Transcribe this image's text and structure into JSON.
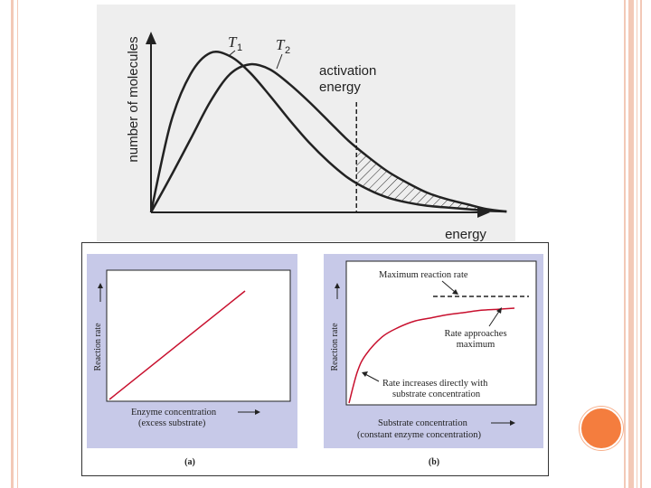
{
  "theme": {
    "accent": "#f47d3e",
    "decor": "#f3c9b7",
    "curve_red": "#c8102e",
    "panel_bg": "#c7c9e8"
  },
  "chart_data": [
    {
      "type": "line",
      "ylabel": "number of molecules",
      "xlabel": "energy",
      "series": [
        {
          "name": "T1",
          "label_main": "T",
          "label_sub": "1",
          "x": [
            0,
            0.05,
            0.1,
            0.15,
            0.2,
            0.25,
            0.3,
            0.35,
            0.4,
            0.45,
            0.5,
            0.55,
            0.6,
            0.65,
            0.7,
            0.75,
            0.8,
            0.85,
            0.9
          ],
          "y": [
            0,
            0.55,
            0.85,
            0.98,
            0.96,
            0.86,
            0.72,
            0.57,
            0.43,
            0.31,
            0.21,
            0.14,
            0.09,
            0.06,
            0.04,
            0.03,
            0.02,
            0.01,
            0.005
          ]
        },
        {
          "name": "T2",
          "label_main": "T",
          "label_sub": "2",
          "x": [
            0,
            0.05,
            0.1,
            0.15,
            0.2,
            0.25,
            0.3,
            0.35,
            0.4,
            0.45,
            0.5,
            0.55,
            0.6,
            0.65,
            0.7,
            0.75,
            0.8,
            0.85,
            0.9
          ],
          "y": [
            0,
            0.22,
            0.45,
            0.68,
            0.85,
            0.91,
            0.88,
            0.79,
            0.68,
            0.56,
            0.44,
            0.34,
            0.25,
            0.18,
            0.12,
            0.08,
            0.05,
            0.02,
            0.005
          ]
        }
      ],
      "annotation": {
        "lines": [
          "activation",
          "energy"
        ],
        "x": 0.52
      }
    },
    {
      "type": "line",
      "panel_label": "(a)",
      "ylabel": "Reaction rate",
      "xlabel_lines": [
        "Enzyme concentration",
        "(excess substrate)"
      ],
      "series": [
        {
          "x": [
            0,
            1
          ],
          "y": [
            0,
            1
          ]
        }
      ]
    },
    {
      "type": "line",
      "panel_label": "(b)",
      "ylabel": "Reaction rate",
      "xlabel_lines": [
        "Substrate concentration",
        "(constant enzyme concentration)"
      ],
      "series": [
        {
          "x": [
            0,
            0.05,
            0.1,
            0.2,
            0.3,
            0.4,
            0.5,
            0.6,
            0.7,
            0.8,
            0.9,
            1.0
          ],
          "y": [
            0,
            0.29,
            0.45,
            0.62,
            0.71,
            0.77,
            0.8,
            0.83,
            0.85,
            0.87,
            0.88,
            0.89
          ]
        }
      ],
      "max_rate": 1.0,
      "annotations": {
        "max_label": "Maximum reaction rate",
        "approach_lines": [
          "Rate approaches",
          "maximum"
        ],
        "increase_lines": [
          "Rate increases directly with",
          "substrate concentration"
        ]
      }
    }
  ]
}
